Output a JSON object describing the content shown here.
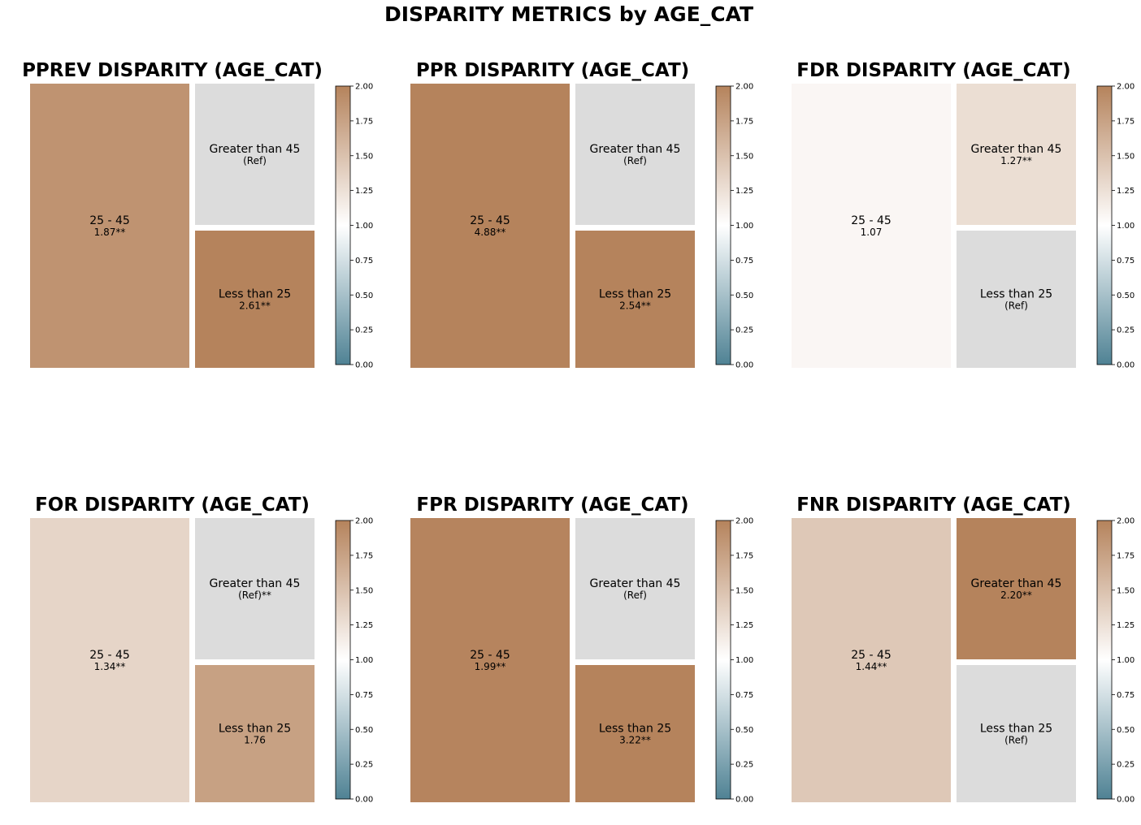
{
  "suptitle": "DISPARITY METRICS by AGE_CAT",
  "colors": {
    "low": "#4f8294",
    "mid": "#ffffff",
    "high": "#b5835c",
    "reference": "#dcdcdc"
  },
  "chart_data": [
    {
      "type": "treemap",
      "title": "PPREV DISPARITY (AGE_CAT)",
      "colorbar": {
        "range": [
          0,
          2
        ],
        "ticks": [
          "0.00",
          "0.25",
          "0.50",
          "0.75",
          "1.00",
          "1.25",
          "1.50",
          "1.75",
          "2.00"
        ]
      },
      "cells": [
        {
          "label": "25 - 45",
          "value_label": "1.87**",
          "value": 1.87,
          "reference": false
        },
        {
          "label": "Greater than 45",
          "value_label": "(Ref)",
          "value": 1.0,
          "reference": true
        },
        {
          "label": "Less than 25",
          "value_label": "2.61**",
          "value": 2.61,
          "reference": false
        }
      ]
    },
    {
      "type": "treemap",
      "title": "PPR DISPARITY (AGE_CAT)",
      "colorbar": {
        "range": [
          0,
          2
        ],
        "ticks": [
          "0.00",
          "0.25",
          "0.50",
          "0.75",
          "1.00",
          "1.25",
          "1.50",
          "1.75",
          "2.00"
        ]
      },
      "cells": [
        {
          "label": "25 - 45",
          "value_label": "4.88**",
          "value": 4.88,
          "reference": false
        },
        {
          "label": "Greater than 45",
          "value_label": "(Ref)",
          "value": 1.0,
          "reference": true
        },
        {
          "label": "Less than 25",
          "value_label": "2.54**",
          "value": 2.54,
          "reference": false
        }
      ]
    },
    {
      "type": "treemap",
      "title": "FDR DISPARITY (AGE_CAT)",
      "colorbar": {
        "range": [
          0,
          2
        ],
        "ticks": [
          "0.00",
          "0.25",
          "0.50",
          "0.75",
          "1.00",
          "1.25",
          "1.50",
          "1.75",
          "2.00"
        ]
      },
      "cells": [
        {
          "label": "25 - 45",
          "value_label": "1.07",
          "value": 1.07,
          "reference": false
        },
        {
          "label": "Greater than 45",
          "value_label": "1.27**",
          "value": 1.27,
          "reference": false
        },
        {
          "label": "Less than 25",
          "value_label": "(Ref)",
          "value": 1.0,
          "reference": true
        }
      ]
    },
    {
      "type": "treemap",
      "title": "FOR DISPARITY (AGE_CAT)",
      "colorbar": {
        "range": [
          0,
          2
        ],
        "ticks": [
          "0.00",
          "0.25",
          "0.50",
          "0.75",
          "1.00",
          "1.25",
          "1.50",
          "1.75",
          "2.00"
        ]
      },
      "cells": [
        {
          "label": "25 - 45",
          "value_label": "1.34**",
          "value": 1.34,
          "reference": false
        },
        {
          "label": "Greater than 45",
          "value_label": "(Ref)**",
          "value": 1.0,
          "reference": true
        },
        {
          "label": "Less than 25",
          "value_label": "1.76",
          "value": 1.76,
          "reference": false
        }
      ]
    },
    {
      "type": "treemap",
      "title": "FPR DISPARITY (AGE_CAT)",
      "colorbar": {
        "range": [
          0,
          2
        ],
        "ticks": [
          "0.00",
          "0.25",
          "0.50",
          "0.75",
          "1.00",
          "1.25",
          "1.50",
          "1.75",
          "2.00"
        ]
      },
      "cells": [
        {
          "label": "25 - 45",
          "value_label": "1.99**",
          "value": 1.99,
          "reference": false
        },
        {
          "label": "Greater than 45",
          "value_label": "(Ref)",
          "value": 1.0,
          "reference": true
        },
        {
          "label": "Less than 25",
          "value_label": "3.22**",
          "value": 3.22,
          "reference": false
        }
      ]
    },
    {
      "type": "treemap",
      "title": "FNR DISPARITY (AGE_CAT)",
      "colorbar": {
        "range": [
          0,
          2
        ],
        "ticks": [
          "0.00",
          "0.25",
          "0.50",
          "0.75",
          "1.00",
          "1.25",
          "1.50",
          "1.75",
          "2.00"
        ]
      },
      "cells": [
        {
          "label": "25 - 45",
          "value_label": "1.44**",
          "value": 1.44,
          "reference": false
        },
        {
          "label": "Greater than 45",
          "value_label": "2.20**",
          "value": 2.2,
          "reference": false
        },
        {
          "label": "Less than 25",
          "value_label": "(Ref)",
          "value": 1.0,
          "reference": true
        }
      ]
    }
  ]
}
